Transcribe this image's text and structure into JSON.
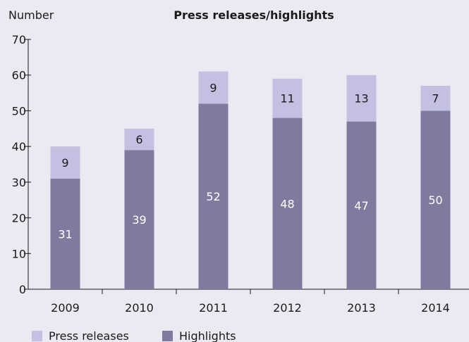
{
  "chart_data": {
    "type": "bar",
    "stacked": true,
    "title": "Press releases/highlights",
    "ylabel": "Number",
    "xlabel": "",
    "categories": [
      "2009",
      "2010",
      "2011",
      "2012",
      "2013",
      "2014"
    ],
    "series": [
      {
        "name": "Highlights",
        "values": [
          31,
          39,
          52,
          48,
          47,
          50
        ],
        "color": "#7f7b9f",
        "label_color": "#ffffff"
      },
      {
        "name": "Press releases",
        "values": [
          9,
          6,
          9,
          11,
          13,
          7
        ],
        "color": "#c3c0e2",
        "label_color": "#1a1a1a"
      }
    ],
    "ylim": [
      0,
      70
    ],
    "yticks": [
      0,
      10,
      20,
      30,
      40,
      50,
      60,
      70
    ],
    "grid": false,
    "legend": "bottom-left",
    "legend_order": [
      "Press releases",
      "Highlights"
    ],
    "data_labels": true
  }
}
